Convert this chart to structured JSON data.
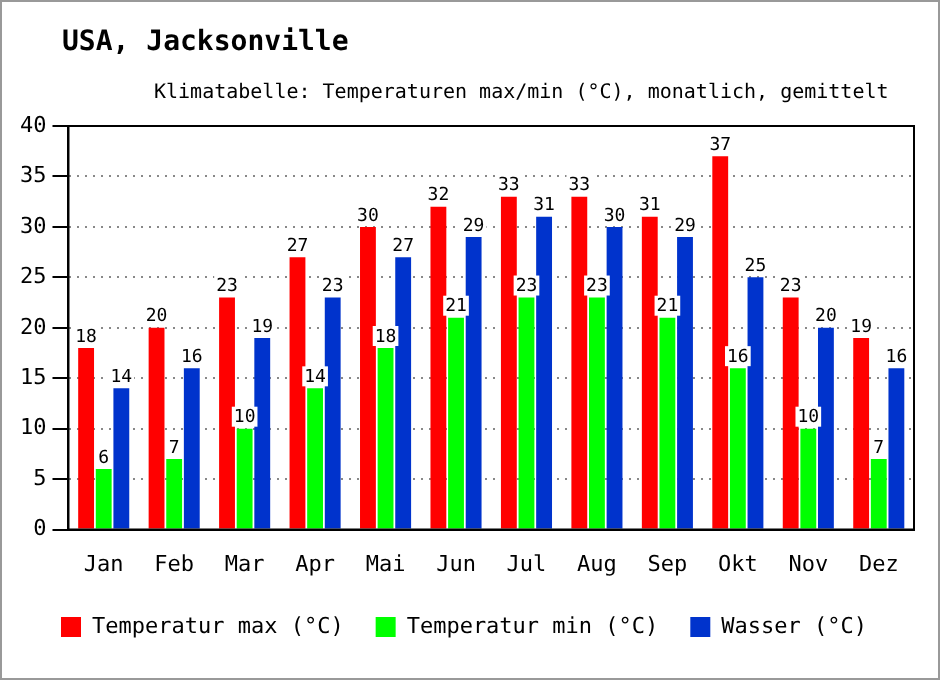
{
  "chart_data": {
    "type": "bar",
    "title": "USA, Jacksonville",
    "subtitle": "Klimatabelle: Temperaturen max/min (°C), monatlich, gemittelt",
    "categories": [
      "Jan",
      "Feb",
      "Mar",
      "Apr",
      "Mai",
      "Jun",
      "Jul",
      "Aug",
      "Sep",
      "Okt",
      "Nov",
      "Dez"
    ],
    "series": [
      {
        "name": "Temperatur max (°C)",
        "color": "#ff0000",
        "values": [
          18,
          20,
          23,
          27,
          30,
          32,
          33,
          33,
          31,
          37,
          23,
          19
        ]
      },
      {
        "name": "Temperatur min (°C)",
        "color": "#00ff00",
        "values": [
          6,
          7,
          10,
          14,
          18,
          21,
          23,
          23,
          21,
          16,
          10,
          7
        ]
      },
      {
        "name": "Wasser (°C)",
        "color": "#0033cc",
        "values": [
          14,
          16,
          19,
          23,
          27,
          29,
          31,
          30,
          29,
          25,
          20,
          16
        ]
      }
    ],
    "ylim": [
      0,
      40
    ],
    "yticks": [
      0,
      5,
      10,
      15,
      20,
      25,
      30,
      35,
      40
    ],
    "grid": "y",
    "legend": "bottom",
    "data_labels": true
  }
}
